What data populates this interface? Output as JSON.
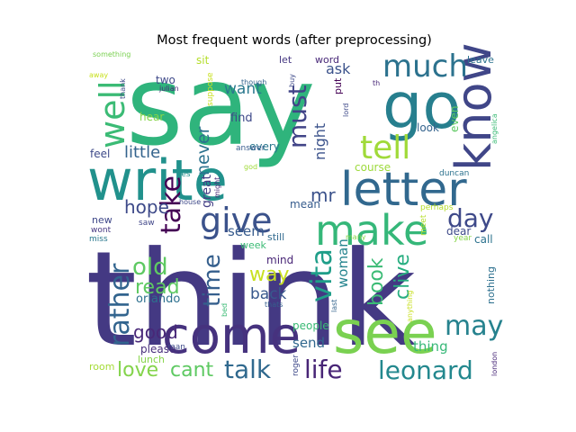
{
  "chart_data": {
    "type": "wordcloud",
    "title": "Most frequent words (after preprocessing)",
    "words": [
      {
        "text": "think",
        "color": "#443983"
      },
      {
        "text": "say",
        "color": "#2fb47c"
      },
      {
        "text": "come",
        "color": "#46327e"
      },
      {
        "text": "see",
        "color": "#7ad151"
      },
      {
        "text": "write",
        "color": "#21918c"
      },
      {
        "text": "go",
        "color": "#277f8e"
      },
      {
        "text": "know",
        "color": "#404688"
      },
      {
        "text": "letter",
        "color": "#31688e"
      },
      {
        "text": "make",
        "color": "#35b779"
      },
      {
        "text": "give",
        "color": "#3b528b"
      },
      {
        "text": "tell",
        "color": "#a0da39"
      },
      {
        "text": "much",
        "color": "#2c728e"
      },
      {
        "text": "well",
        "color": "#3bbb75"
      },
      {
        "text": "must",
        "color": "#414487"
      },
      {
        "text": "take",
        "color": "#440154"
      },
      {
        "text": "vita",
        "color": "#1f9e89"
      },
      {
        "text": "day",
        "color": "#3e4989"
      },
      {
        "text": "leonard",
        "color": "#23888e"
      },
      {
        "text": "life",
        "color": "#482576"
      },
      {
        "text": "talk",
        "color": "#30698e"
      },
      {
        "text": "may",
        "color": "#26828e"
      },
      {
        "text": "rather",
        "color": "#32648e"
      },
      {
        "text": "old",
        "color": "#5ec962"
      },
      {
        "text": "time",
        "color": "#355f8d"
      },
      {
        "text": "love",
        "color": "#84d44b"
      },
      {
        "text": "cant",
        "color": "#5ec962"
      },
      {
        "text": "mr",
        "color": "#3b528b"
      },
      {
        "text": "hope",
        "color": "#3e4a89"
      },
      {
        "text": "book",
        "color": "#3bbb75"
      },
      {
        "text": "clive",
        "color": "#28ae80"
      },
      {
        "text": "way",
        "color": "#c8e020"
      },
      {
        "text": "read",
        "color": "#5ec962"
      },
      {
        "text": "good",
        "color": "#482878"
      },
      {
        "text": "never",
        "color": "#2c728e"
      },
      {
        "text": "little",
        "color": "#33638d"
      },
      {
        "text": "night",
        "color": "#3b528b"
      },
      {
        "text": "back",
        "color": "#38588c"
      },
      {
        "text": "woman",
        "color": "#25848e"
      },
      {
        "text": "ask",
        "color": "#3b528b"
      },
      {
        "text": "want",
        "color": "#2a788e"
      },
      {
        "text": "great",
        "color": "#433e85"
      },
      {
        "text": "seem",
        "color": "#375b8d"
      },
      {
        "text": "send",
        "color": "#31688e"
      },
      {
        "text": "thing",
        "color": "#37b878"
      },
      {
        "text": "orlando",
        "color": "#2d708e"
      },
      {
        "text": "please",
        "color": "#472d7b"
      },
      {
        "text": "find",
        "color": "#3e4989"
      },
      {
        "text": "hear",
        "color": "#86d549"
      },
      {
        "text": "course",
        "color": "#9dd93b"
      },
      {
        "text": "look",
        "color": "#33638d"
      },
      {
        "text": "even",
        "color": "#5ec962"
      },
      {
        "text": "feel",
        "color": "#3e4a89"
      },
      {
        "text": "mean",
        "color": "#365c8d"
      },
      {
        "text": "still",
        "color": "#30698e"
      },
      {
        "text": "mind",
        "color": "#482576"
      },
      {
        "text": "week",
        "color": "#3bbb75"
      },
      {
        "text": "new",
        "color": "#3f4889"
      },
      {
        "text": "put",
        "color": "#440154"
      },
      {
        "text": "every",
        "color": "#2a788e"
      },
      {
        "text": "people",
        "color": "#3bbb75"
      },
      {
        "text": "nothing",
        "color": "#2d708e"
      },
      {
        "text": "dear",
        "color": "#3e4a89"
      },
      {
        "text": "call",
        "color": "#2c728e"
      },
      {
        "text": "two",
        "color": "#3e4989"
      },
      {
        "text": "sit",
        "color": "#b5de2b"
      },
      {
        "text": "let",
        "color": "#453781"
      },
      {
        "text": "word",
        "color": "#482878"
      },
      {
        "text": "leave",
        "color": "#2c728e"
      },
      {
        "text": "lunch",
        "color": "#86d549"
      },
      {
        "text": "room",
        "color": "#a5db36"
      },
      {
        "text": "man",
        "color": "#3e4a89"
      },
      {
        "text": "wont",
        "color": "#453781"
      },
      {
        "text": "saw",
        "color": "#404688"
      },
      {
        "text": "miss",
        "color": "#2a788e"
      },
      {
        "text": "yes",
        "color": "#21918c"
      },
      {
        "text": "meet",
        "color": "#b5de2b"
      },
      {
        "text": "year",
        "color": "#86d549"
      },
      {
        "text": "angelica",
        "color": "#3bbb75"
      },
      {
        "text": "duncan",
        "color": "#2c728e"
      },
      {
        "text": "perhaps",
        "color": "#b5de2b"
      },
      {
        "text": "london",
        "color": "#482878"
      },
      {
        "text": "roger",
        "color": "#3e4989"
      },
      {
        "text": "last",
        "color": "#33638d"
      },
      {
        "text": "anything",
        "color": "#c8e020"
      },
      {
        "text": "thats",
        "color": "#355f8d"
      },
      {
        "text": "bed",
        "color": "#3bbb75"
      },
      {
        "text": "many",
        "color": "#86d549"
      },
      {
        "text": "house",
        "color": "#3e4989"
      },
      {
        "text": "might",
        "color": "#482878"
      },
      {
        "text": "god",
        "color": "#a0da39"
      },
      {
        "text": "answer",
        "color": "#375b8d"
      },
      {
        "text": "something",
        "color": "#7ad151"
      },
      {
        "text": "away",
        "color": "#c8e020"
      },
      {
        "text": "thank",
        "color": "#3e4a89"
      },
      {
        "text": "julian",
        "color": "#482878"
      },
      {
        "text": "suppose",
        "color": "#c8e020"
      },
      {
        "text": "though",
        "color": "#33638d"
      },
      {
        "text": "buy",
        "color": "#3e4a89"
      },
      {
        "text": "th",
        "color": "#482878"
      },
      {
        "text": "lord",
        "color": "#3e4989"
      }
    ]
  }
}
